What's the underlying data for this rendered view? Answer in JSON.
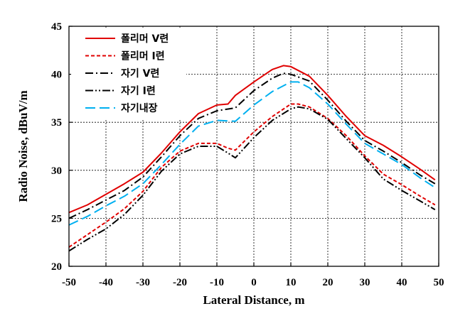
{
  "chart_data": {
    "type": "line",
    "xlabel": "Lateral Distance, m",
    "ylabel": "Radio Noise, dBuV/m",
    "xlim": [
      -50,
      50
    ],
    "ylim": [
      20,
      45
    ],
    "x_ticks": [
      "-50",
      "-40",
      "-30",
      "-20",
      "-10",
      "0",
      "10",
      "20",
      "30",
      "40",
      "50"
    ],
    "y_ticks": [
      "20",
      "25",
      "30",
      "35",
      "40",
      "45"
    ],
    "grid": true,
    "legend_position": "top-left",
    "series": [
      {
        "name": "폴리머 V련",
        "color": "#e00000",
        "dash": "solid",
        "points": [
          [
            -50,
            25.6
          ],
          [
            -45,
            26.4
          ],
          [
            -40,
            27.5
          ],
          [
            -35,
            28.6
          ],
          [
            -30,
            29.8
          ],
          [
            -25,
            31.8
          ],
          [
            -20,
            34.0
          ],
          [
            -15,
            35.9
          ],
          [
            -10,
            36.8
          ],
          [
            -7,
            36.9
          ],
          [
            -5,
            37.8
          ],
          [
            0,
            39.2
          ],
          [
            5,
            40.5
          ],
          [
            8,
            40.9
          ],
          [
            10,
            40.8
          ],
          [
            15,
            39.8
          ],
          [
            20,
            37.8
          ],
          [
            25,
            35.6
          ],
          [
            30,
            33.6
          ],
          [
            35,
            32.6
          ],
          [
            40,
            31.4
          ],
          [
            45,
            30.1
          ],
          [
            49,
            29.0
          ]
        ]
      },
      {
        "name": "폴리머 I련",
        "color": "#e00000",
        "dash": "short-dash",
        "points": [
          [
            -50,
            22.0
          ],
          [
            -45,
            23.3
          ],
          [
            -40,
            24.6
          ],
          [
            -35,
            26.0
          ],
          [
            -30,
            27.8
          ],
          [
            -25,
            30.3
          ],
          [
            -20,
            32.0
          ],
          [
            -15,
            32.8
          ],
          [
            -10,
            32.8
          ],
          [
            -7,
            32.3
          ],
          [
            -5,
            32.1
          ],
          [
            0,
            34.0
          ],
          [
            5,
            35.6
          ],
          [
            10,
            36.9
          ],
          [
            12,
            36.9
          ],
          [
            15,
            36.6
          ],
          [
            20,
            35.4
          ],
          [
            25,
            33.6
          ],
          [
            30,
            31.5
          ],
          [
            35,
            29.6
          ],
          [
            40,
            28.5
          ],
          [
            45,
            27.3
          ],
          [
            49,
            26.4
          ]
        ]
      },
      {
        "name": "자기 V련",
        "color": "#000000",
        "dash": "dash-dot",
        "points": [
          [
            -50,
            25.0
          ],
          [
            -45,
            25.9
          ],
          [
            -40,
            26.9
          ],
          [
            -35,
            27.9
          ],
          [
            -30,
            29.3
          ],
          [
            -25,
            31.4
          ],
          [
            -20,
            33.6
          ],
          [
            -15,
            35.4
          ],
          [
            -10,
            36.2
          ],
          [
            -5,
            36.5
          ],
          [
            0,
            38.3
          ],
          [
            5,
            39.6
          ],
          [
            8,
            40.1
          ],
          [
            10,
            40.0
          ],
          [
            15,
            39.3
          ],
          [
            20,
            37.3
          ],
          [
            25,
            35.1
          ],
          [
            30,
            33.1
          ],
          [
            35,
            32.0
          ],
          [
            40,
            30.8
          ],
          [
            45,
            29.5
          ],
          [
            49,
            28.6
          ]
        ]
      },
      {
        "name": "자기 I련",
        "color": "#000000",
        "dash": "dash-dot-dot",
        "points": [
          [
            -50,
            21.6
          ],
          [
            -45,
            22.8
          ],
          [
            -40,
            23.9
          ],
          [
            -35,
            25.4
          ],
          [
            -30,
            27.4
          ],
          [
            -25,
            29.9
          ],
          [
            -20,
            31.7
          ],
          [
            -15,
            32.5
          ],
          [
            -10,
            32.5
          ],
          [
            -7,
            31.8
          ],
          [
            -5,
            31.3
          ],
          [
            0,
            33.4
          ],
          [
            5,
            35.2
          ],
          [
            10,
            36.4
          ],
          [
            12,
            36.6
          ],
          [
            15,
            36.4
          ],
          [
            20,
            35.3
          ],
          [
            25,
            33.3
          ],
          [
            30,
            31.3
          ],
          [
            35,
            29.1
          ],
          [
            40,
            27.9
          ],
          [
            45,
            26.8
          ],
          [
            49,
            25.9
          ]
        ]
      },
      {
        "name": "자기내장",
        "color": "#00b0f0",
        "dash": "long-dash",
        "points": [
          [
            -50,
            24.3
          ],
          [
            -45,
            25.2
          ],
          [
            -40,
            26.3
          ],
          [
            -35,
            27.3
          ],
          [
            -30,
            28.6
          ],
          [
            -25,
            30.6
          ],
          [
            -20,
            32.7
          ],
          [
            -15,
            34.6
          ],
          [
            -10,
            35.2
          ],
          [
            -5,
            35.1
          ],
          [
            0,
            36.8
          ],
          [
            5,
            38.2
          ],
          [
            10,
            39.2
          ],
          [
            12,
            39.2
          ],
          [
            15,
            38.6
          ],
          [
            20,
            36.9
          ],
          [
            25,
            34.8
          ],
          [
            30,
            32.8
          ],
          [
            35,
            31.7
          ],
          [
            40,
            30.6
          ],
          [
            45,
            29.2
          ],
          [
            49,
            28.2
          ]
        ]
      }
    ]
  }
}
